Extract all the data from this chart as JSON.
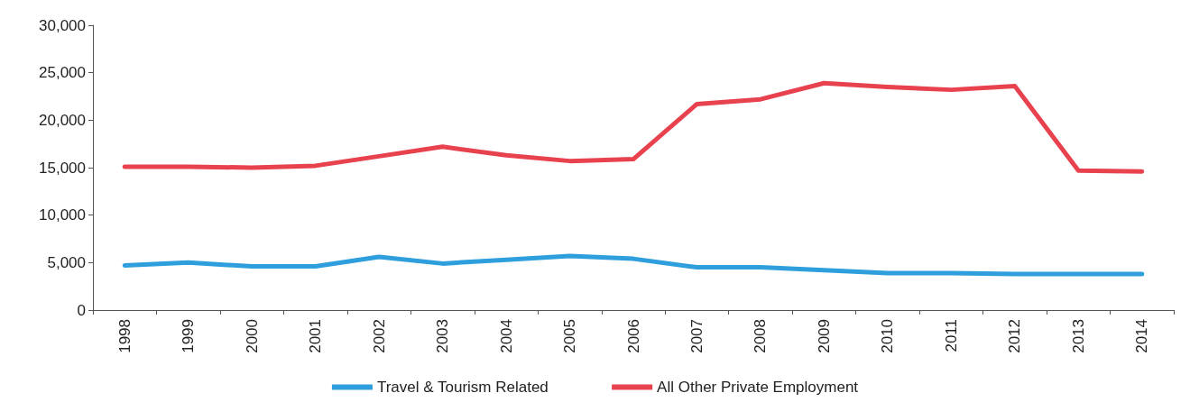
{
  "chart_data": {
    "type": "line",
    "categories": [
      "1998",
      "1999",
      "2000",
      "2001",
      "2002",
      "2003",
      "2004",
      "2005",
      "2006",
      "2007",
      "2008",
      "2009",
      "2010",
      "2011",
      "2012",
      "2013",
      "2014"
    ],
    "series": [
      {
        "name": "Travel & Tourism Related",
        "color": "#2e9fdc",
        "values": [
          4700,
          5000,
          4600,
          4600,
          5600,
          4900,
          5300,
          5700,
          5400,
          4500,
          4500,
          4200,
          3900,
          3900,
          3800,
          3800,
          3800
        ]
      },
      {
        "name": "All Other Private Employment",
        "color": "#e8424f",
        "values": [
          15100,
          15100,
          15000,
          15200,
          16200,
          17200,
          16300,
          15700,
          15900,
          21700,
          22200,
          23900,
          23500,
          23200,
          23600,
          14700,
          14600
        ]
      }
    ],
    "ylim": [
      0,
      30000
    ],
    "yticks": [
      0,
      {
        "value": 5000,
        "label": "5,000"
      },
      {
        "value": 10000,
        "label": "10,000"
      },
      {
        "value": 15000,
        "label": "15,000"
      },
      {
        "value": 20000,
        "label": "20,000"
      },
      {
        "value": 25000,
        "label": "25,000"
      },
      {
        "value": 30000,
        "label": "30,000"
      }
    ],
    "grid": false,
    "legend": "bottom",
    "marker": "none",
    "line_style": "solid"
  }
}
